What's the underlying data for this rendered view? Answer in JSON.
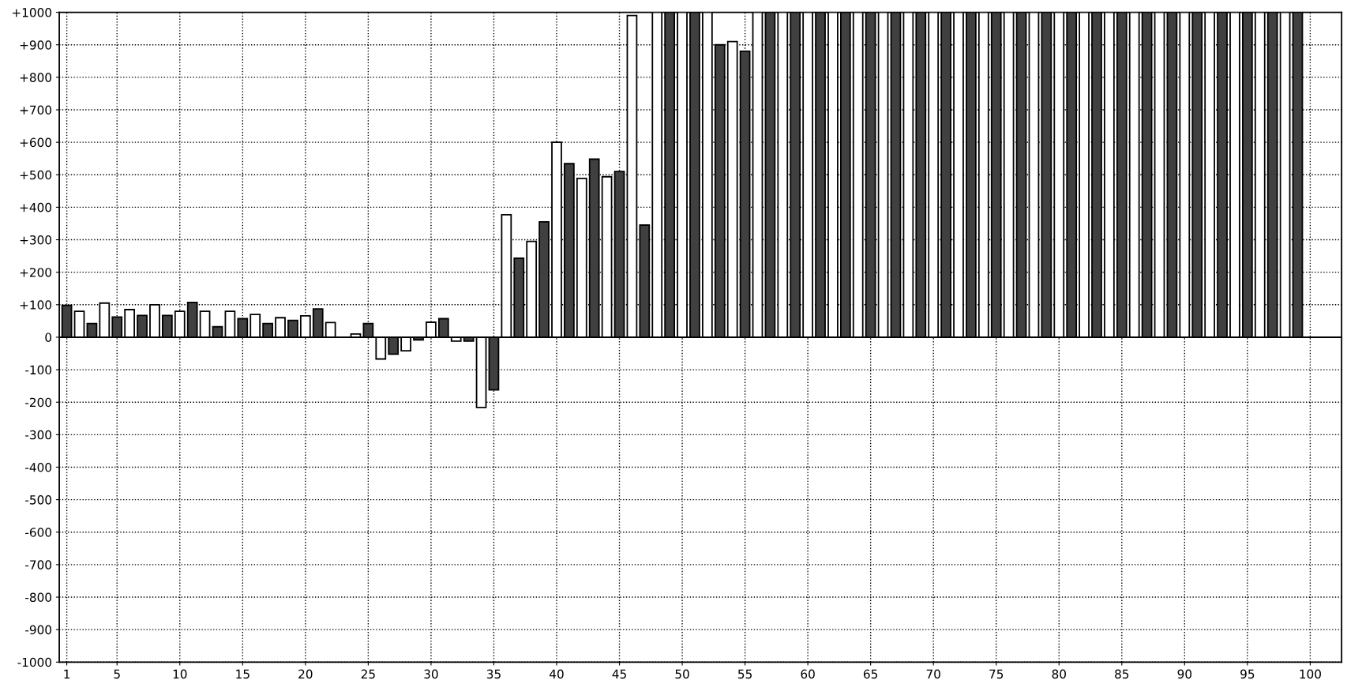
{
  "chart_data": {
    "type": "bar",
    "x": [
      1,
      2,
      3,
      4,
      5,
      6,
      7,
      8,
      9,
      10,
      11,
      12,
      13,
      14,
      15,
      16,
      17,
      18,
      19,
      20,
      21,
      22,
      23,
      24,
      25,
      26,
      27,
      28,
      29,
      30,
      31,
      32,
      33,
      34,
      35,
      36,
      37,
      38,
      39,
      40,
      41,
      42,
      43,
      44,
      45,
      46,
      47,
      48,
      49,
      50,
      51,
      52,
      53,
      54,
      55,
      56,
      57,
      58,
      59,
      60,
      61,
      62,
      63,
      64,
      65,
      66,
      67,
      68,
      69,
      70,
      71,
      72,
      73,
      74,
      75,
      76,
      77,
      78,
      79,
      80,
      81,
      82,
      83,
      84,
      85,
      86,
      87,
      88,
      89,
      90,
      91,
      92,
      93,
      94,
      95,
      96,
      97,
      98,
      99
    ],
    "values": [
      98,
      80,
      42,
      105,
      62,
      85,
      67,
      100,
      67,
      80,
      107,
      80,
      32,
      80,
      57,
      70,
      42,
      60,
      52,
      66,
      87,
      45,
      null,
      10,
      42,
      -67,
      -52,
      -42,
      -8,
      46,
      57,
      -12,
      -12,
      -216,
      -162,
      377,
      243,
      295,
      355,
      600,
      534,
      489,
      548,
      494,
      510,
      990,
      345,
      1000,
      1000,
      1000,
      1000,
      1000,
      900,
      910,
      880,
      1000,
      1000,
      1000,
      1000,
      1000,
      1000,
      1000,
      1000,
      1000,
      1000,
      1000,
      1000,
      1000,
      1000,
      1000,
      1000,
      1000,
      1000,
      1000,
      1000,
      1000,
      1000,
      1000,
      1000,
      1000,
      1000,
      1000,
      1000,
      1000,
      1000,
      1000,
      1000,
      1000,
      1000,
      1000,
      1000,
      1000,
      1000,
      1000,
      1000,
      1000,
      1000,
      1000,
      1000
    ],
    "colors": [
      "#404040",
      "#ffffff",
      "#404040",
      "#ffffff",
      "#404040",
      "#ffffff",
      "#404040",
      "#ffffff",
      "#404040",
      "#ffffff",
      "#404040",
      "#ffffff",
      "#404040",
      "#ffffff",
      "#404040",
      "#ffffff",
      "#404040",
      "#ffffff",
      "#404040",
      "#ffffff",
      "#404040",
      "#ffffff",
      "#404040",
      "#ffffff",
      "#404040",
      "#ffffff",
      "#404040",
      "#ffffff",
      "#404040",
      "#ffffff",
      "#404040",
      "#ffffff",
      "#404040",
      "#ffffff",
      "#404040",
      "#ffffff",
      "#404040",
      "#ffffff",
      "#404040",
      "#ffffff",
      "#404040",
      "#ffffff",
      "#404040",
      "#ffffff",
      "#404040",
      "#ffffff",
      "#404040",
      "#ffffff",
      "#404040",
      "#ffffff",
      "#404040",
      "#ffffff",
      "#404040",
      "#ffffff",
      "#404040",
      "#ffffff",
      "#404040",
      "#ffffff",
      "#404040",
      "#ffffff",
      "#404040",
      "#ffffff",
      "#404040",
      "#ffffff",
      "#404040",
      "#ffffff",
      "#404040",
      "#ffffff",
      "#404040",
      "#ffffff",
      "#404040",
      "#ffffff",
      "#404040",
      "#ffffff",
      "#404040",
      "#ffffff",
      "#404040",
      "#ffffff",
      "#404040",
      "#ffffff",
      "#404040",
      "#ffffff",
      "#404040",
      "#ffffff",
      "#404040",
      "#ffffff",
      "#404040",
      "#ffffff",
      "#404040",
      "#ffffff",
      "#404040",
      "#ffffff",
      "#404040",
      "#ffffff",
      "#404040",
      "#ffffff",
      "#404040",
      "#ffffff",
      "#404040"
    ],
    "xlim": [
      0.4,
      102.5
    ],
    "xticks": [
      1,
      5,
      10,
      15,
      20,
      25,
      30,
      35,
      40,
      45,
      50,
      55,
      60,
      65,
      70,
      75,
      80,
      85,
      90,
      95,
      100
    ],
    "ylim": [
      -1000,
      1000
    ],
    "yticks": [
      {
        "value": -1000,
        "label": "-1000"
      },
      {
        "value": -900,
        "label": "-900"
      },
      {
        "value": -800,
        "label": "-800"
      },
      {
        "value": -700,
        "label": "-700"
      },
      {
        "value": -600,
        "label": "-600"
      },
      {
        "value": -500,
        "label": "-500"
      },
      {
        "value": -400,
        "label": "-400"
      },
      {
        "value": -300,
        "label": "-300"
      },
      {
        "value": -200,
        "label": "-200"
      },
      {
        "value": -100,
        "label": "-100"
      },
      0,
      {
        "value": 100,
        "label": "+100"
      },
      {
        "value": 200,
        "label": "+200"
      },
      {
        "value": 300,
        "label": "+300"
      },
      {
        "value": 400,
        "label": "+400"
      },
      {
        "value": 500,
        "label": "+500"
      },
      {
        "value": 600,
        "label": "+600"
      },
      {
        "value": 700,
        "label": "+700"
      },
      {
        "value": 800,
        "label": "+800"
      },
      {
        "value": 900,
        "label": "+900"
      },
      {
        "value": 1000,
        "label": "+1000"
      }
    ],
    "grid": true,
    "line_style": "dotted"
  }
}
